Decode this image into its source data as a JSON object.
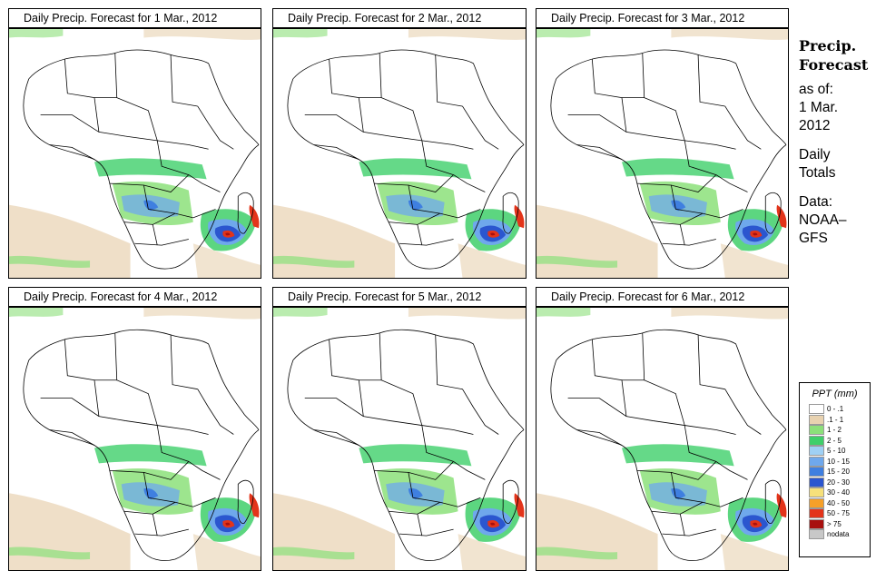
{
  "panels": [
    {
      "title": "Daily Precip. Forecast for  1 Mar., 2012"
    },
    {
      "title": "Daily Precip. Forecast for  2 Mar., 2012"
    },
    {
      "title": "Daily Precip. Forecast for  3 Mar., 2012"
    },
    {
      "title": "Daily Precip. Forecast for  4 Mar., 2012"
    },
    {
      "title": "Daily Precip. Forecast for  5 Mar., 2012"
    },
    {
      "title": "Daily Precip. Forecast for  6 Mar., 2012"
    }
  ],
  "side": {
    "title_line1": "Precip.",
    "title_line2": "Forecast",
    "asof": "as of:",
    "date_line1": "1 Mar.",
    "date_line2": "2012",
    "type_line1": "Daily",
    "type_line2": "Totals",
    "data_line1": "Data:",
    "data_line2": "NOAA–",
    "data_line3": "GFS"
  },
  "legend": {
    "title": "PPT (mm)",
    "items": [
      {
        "label": "0 - .1",
        "color": "#ffffff"
      },
      {
        "label": ".1 - 1",
        "color": "#e8d2b0"
      },
      {
        "label": "1 - 2",
        "color": "#8ce07a"
      },
      {
        "label": "2 - 5",
        "color": "#3fcf6a"
      },
      {
        "label": "5 - 10",
        "color": "#9fd0f4"
      },
      {
        "label": "10 - 15",
        "color": "#6fa8ec"
      },
      {
        "label": "15 - 20",
        "color": "#3f7fe0"
      },
      {
        "label": "20 - 30",
        "color": "#2b56cf"
      },
      {
        "label": "30 - 40",
        "color": "#f6e07a"
      },
      {
        "label": "40 - 50",
        "color": "#f6a028"
      },
      {
        "label": "50 - 75",
        "color": "#e3341a"
      },
      {
        "label": "> 75",
        "color": "#a8100f"
      },
      {
        "label": "nodata",
        "color": "#c8c8c8"
      }
    ]
  }
}
